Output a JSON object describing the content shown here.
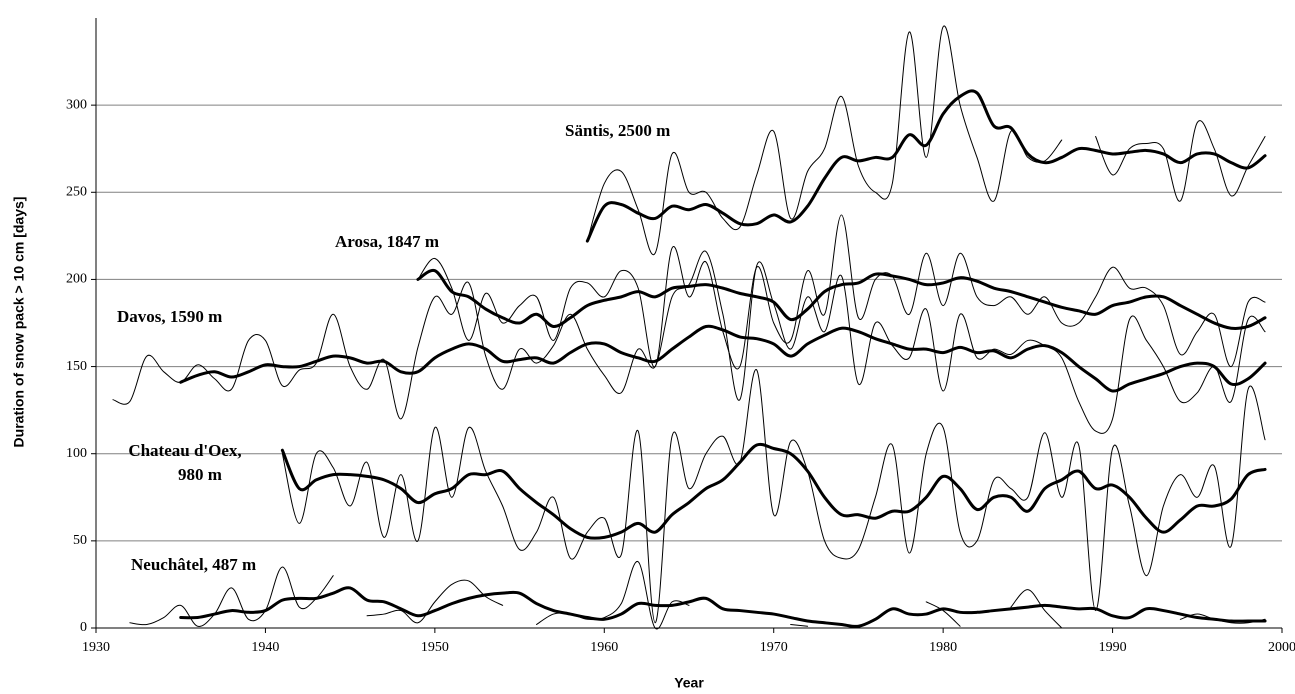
{
  "chart_data": {
    "type": "line",
    "xlabel": "Year",
    "ylabel": "Duration of snow pack > 10 cm [days]",
    "annotations": [
      "Säntis, 2500 m",
      "Arosa, 1847 m",
      "Davos, 1590 m",
      "Chateau d'Oex,",
      "980 m",
      "Neuchâtel, 487 m"
    ],
    "xlim": [
      1930,
      2000
    ],
    "xticks": [
      1930,
      1940,
      1950,
      1960,
      1970,
      1980,
      1990,
      2000
    ],
    "ylim": [
      0,
      350
    ],
    "yticks": [
      0,
      50,
      100,
      150,
      200,
      250,
      300
    ],
    "grid": true,
    "x": [
      1931,
      1932,
      1933,
      1934,
      1935,
      1936,
      1937,
      1938,
      1939,
      1940,
      1941,
      1942,
      1943,
      1944,
      1945,
      1946,
      1947,
      1948,
      1949,
      1950,
      1951,
      1952,
      1953,
      1954,
      1955,
      1956,
      1957,
      1958,
      1959,
      1960,
      1961,
      1962,
      1963,
      1964,
      1965,
      1966,
      1967,
      1968,
      1969,
      1970,
      1971,
      1972,
      1973,
      1974,
      1975,
      1976,
      1977,
      1978,
      1979,
      1980,
      1981,
      1982,
      1983,
      1984,
      1985,
      1986,
      1987,
      1988,
      1989,
      1990,
      1991,
      1992,
      1993,
      1994,
      1995,
      1996,
      1997,
      1998,
      1999
    ],
    "series": [
      {
        "color": "#000000",
        "line_width": 1,
        "values": [
          131,
          130,
          156,
          147,
          141,
          151,
          143,
          137,
          165,
          165,
          139,
          148,
          152,
          180,
          150,
          137,
          154,
          120,
          161,
          190,
          180,
          198,
          156,
          137,
          160,
          152,
          162,
          180,
          160,
          145,
          135,
          160,
          150,
          190,
          197,
          216,
          180,
          131,
          208,
          186,
          160,
          190,
          170,
          202,
          140,
          175,
          162,
          155,
          183,
          136,
          180,
          155,
          160,
          157,
          165,
          162,
          155,
          130,
          113,
          120,
          177,
          165,
          150,
          130,
          135,
          150,
          130,
          177,
          170
        ]
      },
      {
        "color": "#000000",
        "line_width": 3,
        "values": [
          null,
          null,
          null,
          null,
          141,
          145,
          147,
          144,
          147,
          151,
          150,
          150,
          153,
          156,
          155,
          152,
          153,
          147,
          147,
          155,
          160,
          163,
          160,
          153,
          154,
          155,
          152,
          158,
          163,
          163,
          158,
          155,
          153,
          160,
          167,
          173,
          171,
          167,
          166,
          163,
          156,
          163,
          168,
          172,
          170,
          166,
          163,
          160,
          160,
          158,
          161,
          158,
          159,
          155,
          160,
          162,
          158,
          150,
          143,
          136,
          140,
          143,
          146,
          150,
          152,
          150,
          140,
          143,
          152
        ]
      },
      {
        "color": "#000000",
        "line_width": 1,
        "values": [
          null,
          null,
          null,
          null,
          null,
          null,
          null,
          null,
          null,
          null,
          null,
          null,
          null,
          null,
          null,
          null,
          null,
          null,
          200,
          212,
          195,
          165,
          192,
          175,
          185,
          190,
          165,
          195,
          198,
          190,
          205,
          195,
          150,
          218,
          190,
          210,
          170,
          150,
          207,
          175,
          165,
          205,
          180,
          237,
          178,
          200,
          202,
          180,
          215,
          185,
          215,
          190,
          185,
          190,
          180,
          190,
          175,
          175,
          190,
          207,
          195,
          195,
          185,
          157,
          170,
          180,
          150,
          187,
          187
        ]
      },
      {
        "color": "#000000",
        "line_width": 3,
        "values": [
          null,
          null,
          null,
          null,
          null,
          null,
          null,
          null,
          null,
          null,
          null,
          null,
          null,
          null,
          null,
          null,
          null,
          null,
          200,
          205,
          193,
          190,
          183,
          178,
          175,
          180,
          173,
          178,
          185,
          188,
          190,
          193,
          190,
          195,
          196,
          197,
          195,
          192,
          190,
          187,
          177,
          183,
          193,
          197,
          198,
          203,
          202,
          200,
          197,
          198,
          201,
          199,
          195,
          193,
          190,
          187,
          184,
          182,
          180,
          185,
          187,
          190,
          190,
          185,
          180,
          175,
          172,
          173,
          178
        ]
      },
      {
        "color": "#000000",
        "line_width": 1,
        "values": [
          null,
          null,
          null,
          null,
          null,
          null,
          null,
          null,
          null,
          null,
          null,
          null,
          null,
          null,
          null,
          null,
          null,
          null,
          null,
          null,
          null,
          null,
          null,
          null,
          null,
          null,
          null,
          null,
          222,
          255,
          262,
          240,
          215,
          272,
          250,
          250,
          235,
          230,
          260,
          285,
          235,
          262,
          275,
          305,
          265,
          250,
          255,
          342,
          270,
          345,
          300,
          270,
          245,
          285,
          270,
          268,
          280,
          null,
          282,
          260,
          275,
          278,
          275,
          245,
          290,
          275,
          248,
          265,
          282
        ]
      },
      {
        "color": "#000000",
        "line_width": 3,
        "values": [
          null,
          null,
          null,
          null,
          null,
          null,
          null,
          null,
          null,
          null,
          null,
          null,
          null,
          null,
          null,
          null,
          null,
          null,
          null,
          null,
          null,
          null,
          null,
          null,
          null,
          null,
          null,
          null,
          222,
          242,
          243,
          238,
          235,
          242,
          240,
          243,
          238,
          232,
          232,
          237,
          233,
          242,
          258,
          270,
          268,
          270,
          270,
          283,
          277,
          295,
          305,
          307,
          288,
          287,
          272,
          267,
          270,
          275,
          274,
          272,
          273,
          274,
          272,
          267,
          272,
          272,
          267,
          264,
          271
        ]
      },
      {
        "color": "#000000",
        "line_width": 1,
        "values": [
          null,
          null,
          null,
          null,
          null,
          null,
          null,
          null,
          null,
          null,
          100,
          60,
          100,
          92,
          70,
          95,
          52,
          88,
          50,
          115,
          75,
          115,
          90,
          70,
          45,
          55,
          75,
          40,
          55,
          63,
          42,
          113,
          3,
          110,
          80,
          100,
          110,
          95,
          148,
          65,
          107,
          90,
          50,
          40,
          45,
          75,
          105,
          43,
          100,
          115,
          55,
          50,
          85,
          80,
          75,
          112,
          75,
          105,
          10,
          103,
          70,
          30,
          70,
          88,
          75,
          93,
          47,
          137,
          108
        ]
      },
      {
        "color": "#000000",
        "line_width": 3,
        "values": [
          null,
          null,
          null,
          null,
          null,
          null,
          null,
          null,
          null,
          null,
          102,
          80,
          85,
          88,
          88,
          87,
          85,
          80,
          72,
          77,
          80,
          88,
          88,
          90,
          80,
          72,
          65,
          57,
          52,
          52,
          55,
          60,
          55,
          65,
          72,
          80,
          85,
          95,
          105,
          103,
          100,
          90,
          75,
          65,
          65,
          63,
          67,
          67,
          75,
          87,
          80,
          68,
          75,
          75,
          67,
          80,
          85,
          90,
          80,
          82,
          75,
          63,
          55,
          62,
          70,
          70,
          74,
          88,
          91
        ]
      },
      {
        "color": "#000000",
        "line_width": 1,
        "values": [
          null,
          3,
          2,
          6,
          13,
          1,
          8,
          23,
          5,
          10,
          35,
          12,
          17,
          30,
          null,
          7,
          8,
          10,
          3,
          15,
          25,
          27,
          18,
          13,
          null,
          2,
          8,
          8,
          5,
          6,
          14,
          38,
          0,
          15,
          13,
          null,
          null,
          null,
          null,
          null,
          2,
          1,
          null,
          null,
          null,
          null,
          null,
          null,
          15,
          10,
          1,
          null,
          null,
          12,
          22,
          10,
          0,
          null,
          null,
          null,
          null,
          null,
          null,
          5,
          8,
          5,
          3,
          3,
          5
        ]
      },
      {
        "color": "#000000",
        "line_width": 3,
        "values": [
          null,
          null,
          null,
          null,
          6,
          6,
          8,
          10,
          9,
          10,
          16,
          17,
          17,
          20,
          23,
          16,
          15,
          11,
          7,
          10,
          14,
          17,
          19,
          20,
          20,
          14,
          10,
          8,
          6,
          5,
          8,
          14,
          13,
          13,
          15,
          17,
          11,
          10,
          9,
          8,
          6,
          4,
          3,
          2,
          1,
          5,
          11,
          8,
          8,
          11,
          9,
          9,
          10,
          11,
          12,
          13,
          12,
          11,
          11,
          7,
          6,
          11,
          10,
          8,
          6,
          5,
          4,
          4,
          4
        ]
      }
    ]
  }
}
